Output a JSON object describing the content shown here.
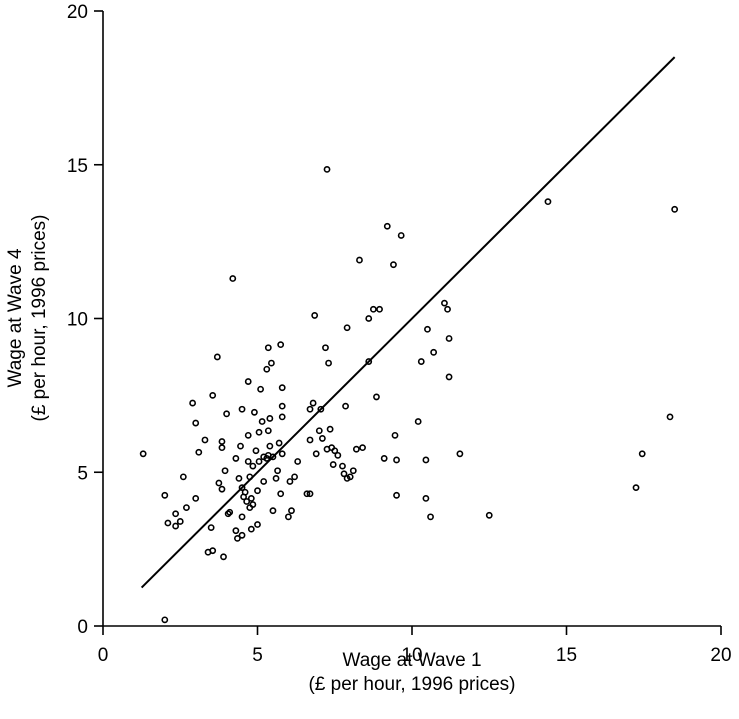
{
  "chart_data": {
    "type": "scatter",
    "title": "",
    "xlabel": "Wage at Wave 1",
    "xlabel_sub": "(£ per hour, 1996 prices)",
    "ylabel": "Wage at Wave 4",
    "ylabel_sub": "(£ per hour, 1996 prices)",
    "xlim": [
      0,
      20
    ],
    "ylim": [
      0,
      20
    ],
    "xticks": [
      0,
      5,
      10,
      15,
      20
    ],
    "yticks": [
      0,
      5,
      10,
      15,
      20
    ],
    "xtick_labels": [
      "0",
      "5",
      "10",
      "15",
      "20"
    ],
    "ytick_labels": [
      "0",
      "5",
      "10",
      "15",
      "20"
    ],
    "grid": false,
    "fit_line": {
      "x": [
        1.25,
        18.5
      ],
      "y": [
        1.25,
        18.5
      ]
    },
    "points": [
      [
        1.3,
        5.6
      ],
      [
        2.0,
        0.2
      ],
      [
        2.0,
        4.25
      ],
      [
        2.1,
        3.35
      ],
      [
        2.35,
        3.65
      ],
      [
        2.35,
        3.25
      ],
      [
        2.5,
        3.4
      ],
      [
        2.6,
        4.85
      ],
      [
        2.7,
        3.85
      ],
      [
        2.9,
        7.25
      ],
      [
        3.0,
        4.15
      ],
      [
        3.0,
        6.6
      ],
      [
        3.1,
        5.65
      ],
      [
        3.3,
        6.05
      ],
      [
        3.4,
        2.4
      ],
      [
        3.5,
        3.2
      ],
      [
        3.55,
        2.45
      ],
      [
        3.55,
        7.5
      ],
      [
        3.7,
        8.75
      ],
      [
        3.75,
        4.65
      ],
      [
        3.85,
        6.0
      ],
      [
        3.85,
        5.8
      ],
      [
        3.85,
        4.45
      ],
      [
        3.9,
        2.25
      ],
      [
        3.95,
        5.05
      ],
      [
        4.0,
        6.9
      ],
      [
        4.05,
        3.65
      ],
      [
        4.1,
        3.7
      ],
      [
        4.2,
        11.3
      ],
      [
        4.3,
        3.1
      ],
      [
        4.3,
        5.45
      ],
      [
        4.35,
        2.85
      ],
      [
        4.4,
        4.8
      ],
      [
        4.45,
        5.85
      ],
      [
        4.5,
        4.5
      ],
      [
        4.5,
        3.55
      ],
      [
        4.5,
        2.95
      ],
      [
        4.5,
        7.05
      ],
      [
        4.55,
        4.2
      ],
      [
        4.6,
        4.35
      ],
      [
        4.65,
        4.05
      ],
      [
        4.7,
        5.35
      ],
      [
        4.7,
        6.2
      ],
      [
        4.7,
        7.95
      ],
      [
        4.75,
        4.85
      ],
      [
        4.75,
        3.85
      ],
      [
        4.8,
        3.15
      ],
      [
        4.8,
        4.15
      ],
      [
        4.85,
        5.2
      ],
      [
        4.85,
        3.95
      ],
      [
        4.9,
        6.95
      ],
      [
        4.95,
        5.7
      ],
      [
        5.0,
        3.3
      ],
      [
        5.0,
        4.4
      ],
      [
        5.05,
        5.35
      ],
      [
        5.05,
        6.3
      ],
      [
        5.1,
        7.7
      ],
      [
        5.15,
        6.65
      ],
      [
        5.2,
        5.5
      ],
      [
        5.2,
        4.7
      ],
      [
        5.3,
        5.45
      ],
      [
        5.3,
        8.35
      ],
      [
        5.35,
        6.35
      ],
      [
        5.35,
        5.55
      ],
      [
        5.35,
        9.05
      ],
      [
        5.4,
        6.75
      ],
      [
        5.4,
        5.85
      ],
      [
        5.45,
        8.55
      ],
      [
        5.5,
        5.5
      ],
      [
        5.5,
        3.75
      ],
      [
        5.6,
        4.8
      ],
      [
        5.65,
        5.05
      ],
      [
        5.7,
        5.95
      ],
      [
        5.75,
        4.3
      ],
      [
        5.75,
        9.15
      ],
      [
        5.8,
        7.75
      ],
      [
        5.8,
        7.15
      ],
      [
        5.8,
        6.8
      ],
      [
        5.8,
        5.6
      ],
      [
        6.0,
        3.55
      ],
      [
        6.05,
        4.7
      ],
      [
        6.1,
        3.75
      ],
      [
        6.2,
        4.85
      ],
      [
        6.3,
        5.35
      ],
      [
        6.6,
        4.3
      ],
      [
        6.7,
        6.05
      ],
      [
        6.7,
        7.05
      ],
      [
        6.7,
        4.3
      ],
      [
        6.8,
        7.25
      ],
      [
        6.85,
        10.1
      ],
      [
        6.9,
        5.6
      ],
      [
        7.0,
        6.35
      ],
      [
        7.05,
        7.05
      ],
      [
        7.1,
        6.1
      ],
      [
        7.2,
        9.05
      ],
      [
        7.25,
        14.85
      ],
      [
        7.25,
        5.75
      ],
      [
        7.3,
        8.55
      ],
      [
        7.35,
        6.4
      ],
      [
        7.4,
        5.8
      ],
      [
        7.45,
        5.25
      ],
      [
        7.5,
        5.7
      ],
      [
        7.6,
        5.55
      ],
      [
        7.75,
        5.2
      ],
      [
        7.8,
        4.95
      ],
      [
        7.85,
        7.15
      ],
      [
        7.9,
        4.8
      ],
      [
        7.9,
        9.7
      ],
      [
        8.0,
        4.85
      ],
      [
        8.1,
        5.05
      ],
      [
        8.2,
        5.75
      ],
      [
        8.3,
        11.9
      ],
      [
        8.4,
        5.8
      ],
      [
        8.6,
        8.6
      ],
      [
        8.6,
        10.0
      ],
      [
        8.75,
        10.3
      ],
      [
        8.85,
        7.45
      ],
      [
        8.95,
        10.3
      ],
      [
        9.1,
        5.45
      ],
      [
        9.2,
        13.0
      ],
      [
        9.4,
        11.75
      ],
      [
        9.45,
        6.2
      ],
      [
        9.5,
        4.25
      ],
      [
        9.5,
        5.4
      ],
      [
        9.65,
        12.7
      ],
      [
        10.2,
        6.65
      ],
      [
        10.3,
        8.6
      ],
      [
        10.45,
        5.4
      ],
      [
        10.45,
        4.15
      ],
      [
        10.5,
        9.65
      ],
      [
        10.6,
        3.55
      ],
      [
        10.7,
        8.9
      ],
      [
        11.05,
        10.5
      ],
      [
        11.15,
        10.3
      ],
      [
        11.2,
        9.35
      ],
      [
        11.2,
        8.1
      ],
      [
        11.55,
        5.6
      ],
      [
        12.5,
        3.6
      ],
      [
        14.4,
        13.8
      ],
      [
        17.25,
        4.5
      ],
      [
        17.45,
        5.6
      ],
      [
        18.35,
        6.8
      ],
      [
        18.5,
        13.55
      ]
    ]
  }
}
